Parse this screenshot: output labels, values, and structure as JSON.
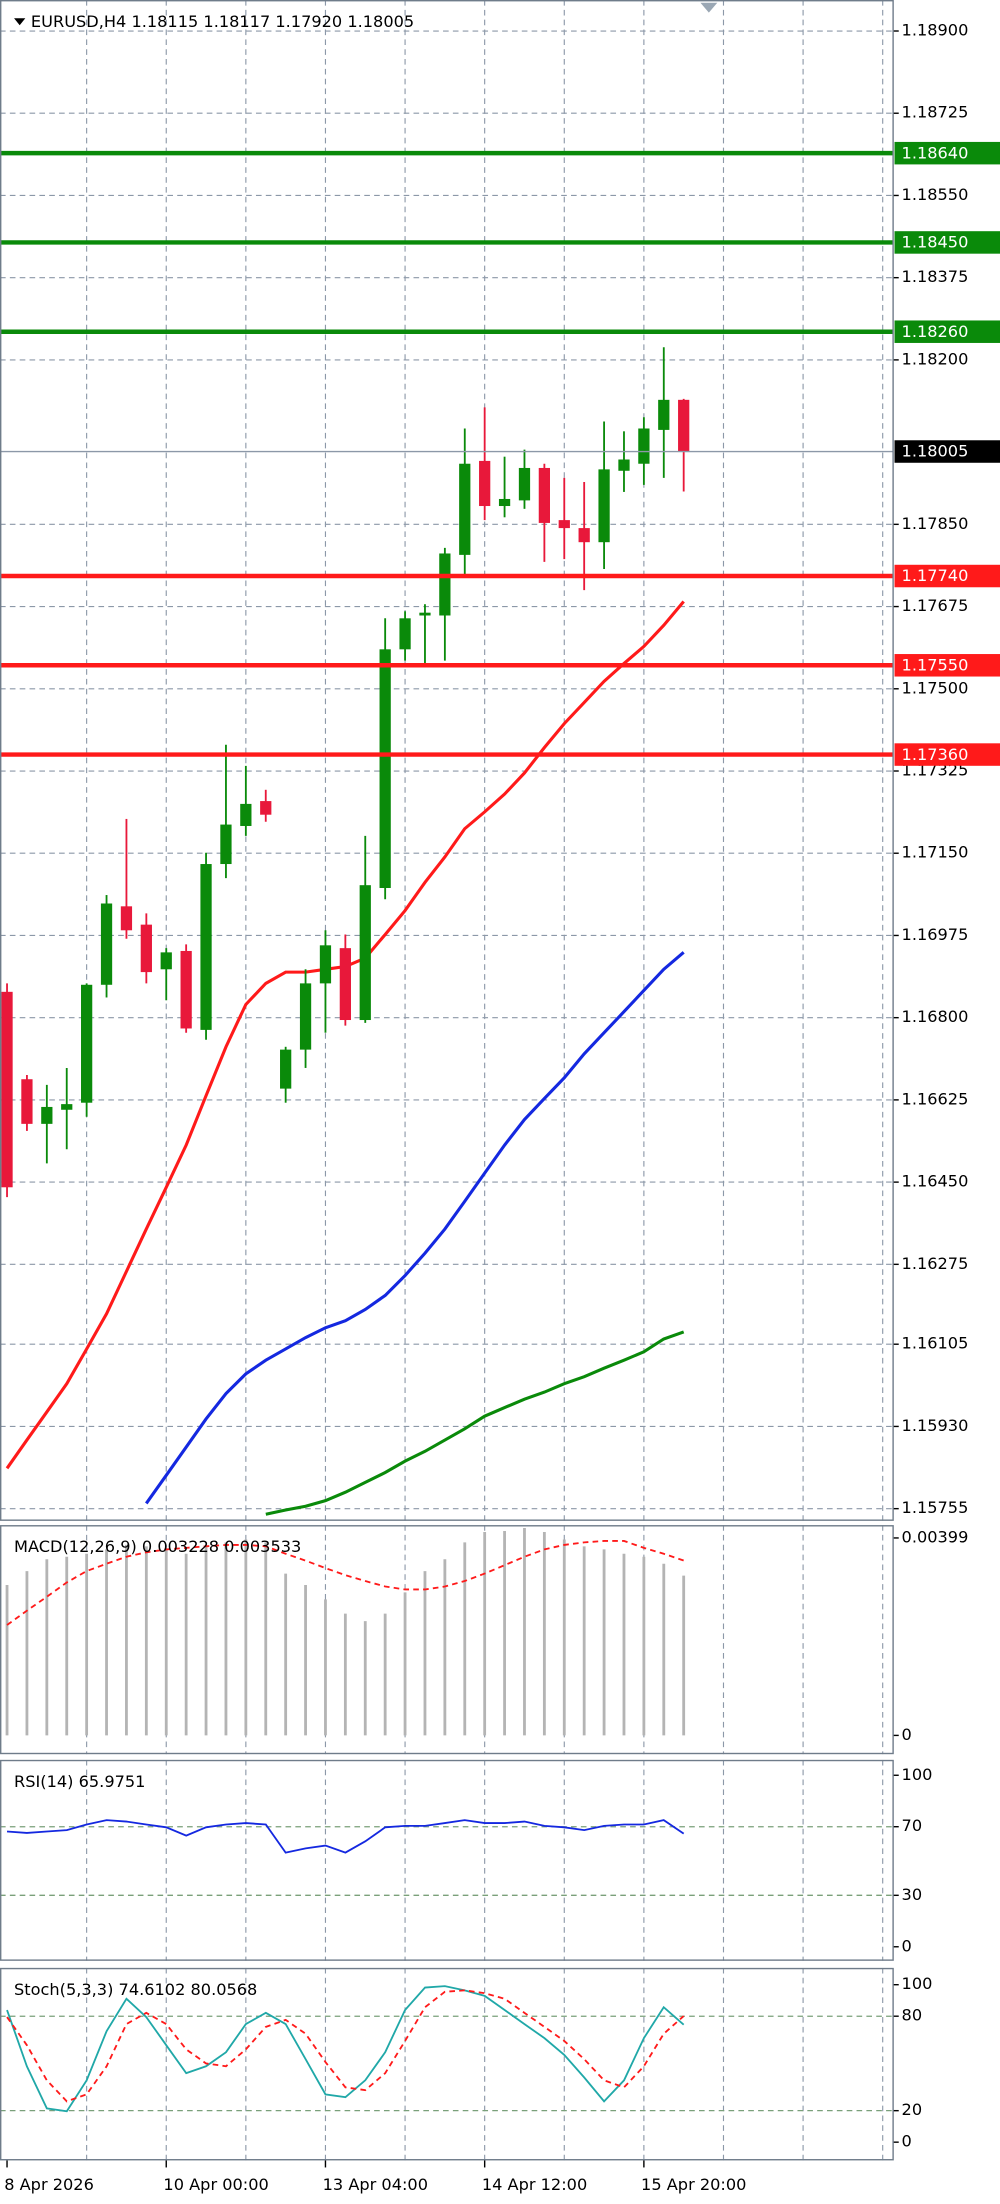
{
  "chart_data": [
    {
      "type": "candlestick",
      "title": "EURUSD,H4  1.18115 1.18117 1.17920 1.18005",
      "categories": [
        "8 Apr 2026",
        null,
        null,
        null,
        null,
        null,
        null,
        null,
        "10 Apr 00:00",
        null,
        null,
        null,
        null,
        null,
        null,
        null,
        "13 Apr 04:00",
        null,
        null,
        null,
        null,
        null,
        null,
        null,
        "14 Apr 12:00",
        null,
        null,
        null,
        null,
        null,
        null,
        null,
        "15 Apr 20:00",
        null,
        null
      ],
      "open": [
        1.16855,
        1.16669,
        1.16574,
        1.16604,
        1.16619,
        1.1687,
        1.17037,
        1.16998,
        1.16903,
        1.16942,
        1.16774,
        1.17127,
        1.17208,
        1.17261,
        1.16649,
        1.16732,
        1.16873,
        1.16948,
        1.16795,
        1.17076,
        1.17584,
        1.17656,
        1.17656,
        1.17785,
        1.17985,
        1.17889,
        1.17901,
        1.1797,
        1.17859,
        1.17842,
        1.17812,
        1.17964,
        1.17979,
        1.18051,
        1.18115
      ],
      "high": [
        1.16873,
        1.16678,
        1.16657,
        1.16693,
        1.16873,
        1.17061,
        1.17223,
        1.17022,
        1.16948,
        1.16956,
        1.17151,
        1.17381,
        1.17336,
        1.17285,
        1.16738,
        1.16903,
        1.16986,
        1.16977,
        1.17187,
        1.1765,
        1.17665,
        1.1768,
        1.178,
        1.18054,
        1.18099,
        1.17994,
        1.18009,
        1.17979,
        1.17949,
        1.1794,
        1.18069,
        1.18048,
        1.18078,
        1.18227,
        1.18117
      ],
      "low": [
        1.16418,
        1.16559,
        1.1649,
        1.1652,
        1.16589,
        1.16843,
        1.16968,
        1.16873,
        1.16837,
        1.16768,
        1.16753,
        1.17097,
        1.17187,
        1.17217,
        1.16619,
        1.16693,
        1.16768,
        1.16783,
        1.16789,
        1.17052,
        1.1756,
        1.17554,
        1.1756,
        1.1774,
        1.17859,
        1.17865,
        1.17883,
        1.1777,
        1.17776,
        1.1771,
        1.17755,
        1.17919,
        1.17934,
        1.17949,
        1.1792
      ],
      "close": [
        1.16439,
        1.16574,
        1.1661,
        1.16616,
        1.1687,
        1.17043,
        1.16986,
        1.16897,
        1.16939,
        1.16777,
        1.17127,
        1.17211,
        1.17255,
        1.17232,
        1.16732,
        1.16873,
        1.16954,
        1.16795,
        1.17082,
        1.17584,
        1.1765,
        1.17662,
        1.17788,
        1.17979,
        1.17889,
        1.17904,
        1.1797,
        1.17853,
        1.17842,
        1.17812,
        1.17967,
        1.17988,
        1.18054,
        1.18115,
        1.18005
      ],
      "up_color": "#0a8a0a",
      "down_color": "#e8183a",
      "series": [
        {
          "color": "#ff1a1a",
          "values": [
            1.15841,
            1.15901,
            1.15961,
            1.16021,
            1.16095,
            1.1617,
            1.1626,
            1.1635,
            1.16439,
            1.16529,
            1.16634,
            1.16738,
            1.16828,
            1.16873,
            1.16897,
            1.16897,
            1.16903,
            1.16909,
            1.16927,
            1.16977,
            1.17028,
            1.17088,
            1.17142,
            1.17202,
            1.17238,
            1.17276,
            1.17321,
            1.17375,
            1.17426,
            1.17471,
            1.17516,
            1.17554,
            1.1759,
            1.17635,
            1.17686
          ]
        },
        {
          "color": "#1428e0",
          "values": [
            null,
            null,
            null,
            null,
            null,
            null,
            null,
            1.15766,
            1.15826,
            1.15886,
            1.15946,
            1.16,
            1.16042,
            1.16071,
            1.16095,
            1.16119,
            1.1614,
            1.16155,
            1.16179,
            1.16209,
            1.16251,
            1.16299,
            1.1635,
            1.16409,
            1.16469,
            1.16529,
            1.16583,
            1.16628,
            1.16672,
            1.16723,
            1.16768,
            1.16813,
            1.16858,
            1.16903,
            1.16939
          ]
        },
        {
          "color": "#0a8a0a",
          "values": [
            null,
            null,
            null,
            null,
            null,
            null,
            null,
            null,
            null,
            null,
            null,
            null,
            null,
            1.15743,
            1.15752,
            1.1576,
            1.15772,
            1.1579,
            1.15811,
            1.15832,
            1.15856,
            1.15877,
            1.15901,
            1.15925,
            1.15952,
            1.1597,
            1.15988,
            1.16003,
            1.16021,
            1.16036,
            1.16054,
            1.16071,
            1.16089,
            1.16116,
            1.16131
          ]
        }
      ],
      "levels": [
        {
          "value": 1.1864,
          "label": "1.18640",
          "color": "#0a8a0a"
        },
        {
          "value": 1.1845,
          "label": "1.18450",
          "color": "#0a8a0a"
        },
        {
          "value": 1.1826,
          "label": "1.18260",
          "color": "#0a8a0a"
        },
        {
          "value": 1.1774,
          "label": "1.17740",
          "color": "#ff1a1a"
        },
        {
          "value": 1.1755,
          "label": "1.17550",
          "color": "#ff1a1a"
        },
        {
          "value": 1.1736,
          "label": "1.17360",
          "color": "#ff1a1a"
        }
      ],
      "current": {
        "value": 1.18005,
        "label": "1.18005"
      },
      "ylim": [
        1.15729,
        1.18966
      ],
      "yticks": [
        {
          "value": 1.189,
          "label": "1.18900"
        },
        {
          "value": 1.18725,
          "label": "1.18725"
        },
        {
          "value": 1.1855,
          "label": "1.18550"
        },
        {
          "value": 1.18375,
          "label": "1.18375"
        },
        {
          "value": 1.182,
          "label": "1.18200"
        },
        {
          "value": 1.1785,
          "label": "1.17850"
        },
        {
          "value": 1.17675,
          "label": "1.17675"
        },
        {
          "value": 1.175,
          "label": "1.17500"
        },
        {
          "value": 1.17325,
          "label": "1.17325"
        },
        {
          "value": 1.1715,
          "label": "1.17150"
        },
        {
          "value": 1.16975,
          "label": "1.16975"
        },
        {
          "value": 1.168,
          "label": "1.16800"
        },
        {
          "value": 1.16625,
          "label": "1.16625"
        },
        {
          "value": 1.1645,
          "label": "1.16450"
        },
        {
          "value": 1.16275,
          "label": "1.16275"
        },
        {
          "value": 1.16105,
          "label": "1.16105"
        },
        {
          "value": 1.1593,
          "label": "1.15930"
        },
        {
          "value": 1.15755,
          "label": "1.15755"
        }
      ],
      "grid": true
    },
    {
      "type": "macd",
      "title": "MACD(12,26,9) 0.003228 0.003533",
      "values": [
        0.00304,
        0.00332,
        0.00356,
        0.00361,
        0.00367,
        0.00376,
        0.00385,
        0.00382,
        0.00376,
        0.00367,
        0.00382,
        0.0039,
        0.00396,
        0.0039,
        0.00327,
        0.00304,
        0.00275,
        0.00246,
        0.00231,
        0.00246,
        0.00289,
        0.00332,
        0.00356,
        0.0039,
        0.00411,
        0.00413,
        0.00419,
        0.00411,
        0.00396,
        0.00382,
        0.00376,
        0.00367,
        0.00361,
        0.00347,
        0.003228
      ],
      "color": "#b4b4b4",
      "series": [
        {
          "color": "#ff1a1a",
          "values": [
            0.00223,
            0.00252,
            0.0028,
            0.00309,
            0.00332,
            0.00347,
            0.00361,
            0.0037,
            0.00376,
            0.00379,
            0.00382,
            0.00385,
            0.00385,
            0.00382,
            0.00367,
            0.00353,
            0.00338,
            0.00324,
            0.00312,
            0.00301,
            0.00295,
            0.00295,
            0.00301,
            0.00312,
            0.00327,
            0.00344,
            0.00361,
            0.00376,
            0.00385,
            0.0039,
            0.00393,
            0.00393,
            0.00379,
            0.00367,
            0.003533
          ],
          "dashed": true
        }
      ],
      "ylim": [
        -0.00038,
        0.00425
      ],
      "yticks": [
        0.00399,
        0
      ]
    },
    {
      "type": "oscillator",
      "title": "RSI(14) 65.9751",
      "series": [
        {
          "color": "#1428e0",
          "values": [
            67.2,
            66.4,
            67.2,
            68.0,
            71.3,
            73.8,
            73.0,
            71.3,
            69.7,
            64.8,
            69.7,
            71.3,
            72.1,
            71.3,
            54.9,
            57.4,
            59.0,
            54.9,
            61.5,
            69.7,
            70.5,
            70.5,
            72.1,
            73.8,
            72.1,
            72.1,
            73.0,
            70.5,
            69.7,
            68.0,
            70.5,
            71.3,
            71.3,
            73.8,
            65.9751
          ]
        }
      ],
      "levels": [
        70,
        30
      ],
      "ylim": [
        -8.2,
        109
      ],
      "yticks": [
        100,
        70,
        30,
        0
      ]
    },
    {
      "type": "oscillator",
      "title": "Stoch(5,3,3) 74.6102 80.0568",
      "series": [
        {
          "color": "#20a8a8",
          "values": [
            83.9,
            48.2,
            21.4,
            19.6,
            39.3,
            70.5,
            91.1,
            79.5,
            61.6,
            43.8,
            48.2,
            57.1,
            75.0,
            82.1,
            75.0,
            52.7,
            30.4,
            28.6,
            39.3,
            57.1,
            83.9,
            98.2,
            99.1,
            96.4,
            92.9,
            83.9,
            75.0,
            66.1,
            55.4,
            41.1,
            25.9,
            39.3,
            66.1,
            85.7,
            74.6102
          ]
        },
        {
          "color": "#ff1a1a",
          "dashed": true,
          "values": [
            79.5,
            61.6,
            39.3,
            25.9,
            30.4,
            48.2,
            75.0,
            82.1,
            75.0,
            58.9,
            50.0,
            48.2,
            58.9,
            73.2,
            77.7,
            68.8,
            50.9,
            34.8,
            33.0,
            43.8,
            64.3,
            85.7,
            95.5,
            96.4,
            94.6,
            91.1,
            82.1,
            73.2,
            64.3,
            52.7,
            39.3,
            34.8,
            48.2,
            68.8,
            80.0568
          ]
        }
      ],
      "levels": [
        80,
        20
      ],
      "ylim": [
        -11.6,
        110.7
      ],
      "yticks": [
        100,
        80,
        20,
        0
      ]
    }
  ]
}
